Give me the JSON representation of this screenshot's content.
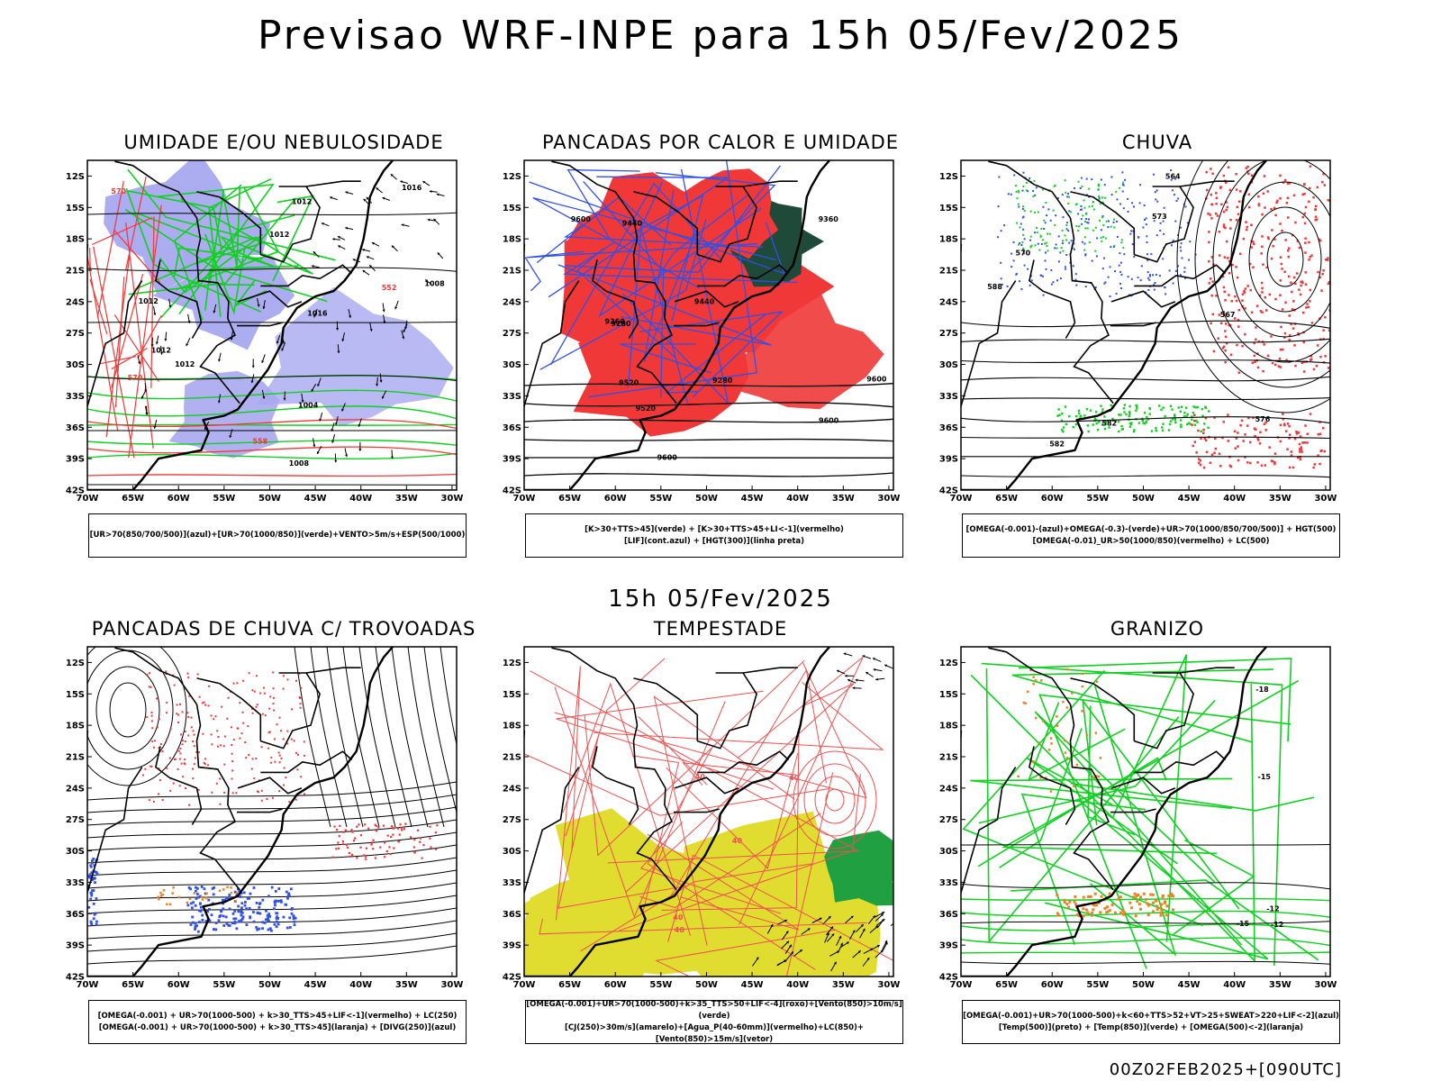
{
  "title": "Previsao WRF-INPE  para 15h 05/Fev/2025",
  "mid_time": "15h 05/Fev/2025",
  "run_label": "00Z02FEB2025+[090UTC]",
  "axes": {
    "lat_labels": [
      "12S",
      "15S",
      "18S",
      "21S",
      "24S",
      "27S",
      "30S",
      "33S",
      "36S",
      "39S",
      "42S"
    ],
    "lon_labels": [
      "70W",
      "65W",
      "60W",
      "55W",
      "50W",
      "45W",
      "40W",
      "35W",
      "30W"
    ]
  },
  "colors": {
    "blue": "#3050e8",
    "green": "#10d020",
    "red": "#f03838",
    "lavender": "#a8a8f0",
    "darkgreen": "#1f4a3a",
    "yellow": "#e0dc30",
    "orange": "#f08020",
    "black": "#000000"
  },
  "panels": [
    {
      "id": "umidade",
      "title": "UMIDADE E/OU NEBULOSIDADE",
      "legend": [
        "[UR>70(850/700/500)](azul)+[UR>70(1000/850)](verde)+VENTO>5m/s+ESP(500/1000)"
      ],
      "contour_labels": [
        "1008",
        "1012",
        "1012",
        "1016",
        "1012",
        "1016",
        "1004",
        "1008",
        "1012",
        "1012",
        "570",
        "558",
        "552",
        "570"
      ]
    },
    {
      "id": "pancadas-calor",
      "title": "PANCADAS POR CALOR E UMIDADE",
      "legend": [
        "[K>30+TTS>45](verde) + [K>30+TTS>45+LI<-1](vermelho)",
        "[LIF](cont.azul) + [HGT(300)](linha preta)"
      ],
      "contour_labels": [
        "9600",
        "9600",
        "9600",
        "9520",
        "9440",
        "9360",
        "9280",
        "9600",
        "9520",
        "9440",
        "9360",
        "9280"
      ]
    },
    {
      "id": "chuva",
      "title": "CHUVA",
      "legend": [
        "[OMEGA(-0.001)-(azul)+OMEGA(-0.3)-(verde)+UR>70(1000/850/700/500)] + HGT(500)",
        "[OMEGA(-0.01)_UR>50(1000/850)(vermelho) + LC(500)"
      ],
      "contour_labels": [
        "582",
        "588",
        "582",
        "576",
        "573",
        "570",
        "567",
        "564"
      ]
    },
    {
      "id": "pancadas-trovoadas",
      "title": "PANCADAS DE CHUVA C/ TROVOADAS",
      "legend": [
        "[OMEGA(-0.001) + UR>70(1000-500) + k>30_TTS>45+LIF<-1](vermelho) + LC(250)",
        "[OMEGA(-0.001) + UR>70(1000-500) + k>30_TTS>45](laranja) + [DIVG(250)](azul)"
      ],
      "contour_labels": []
    },
    {
      "id": "tempestade",
      "title": "TEMPESTADE",
      "legend": [
        "[OMEGA(-0.001)+UR>70(1000-500)+k>35_TTS>50+LIF<-4](roxo)+[Vento(850)>10m/s](verde)",
        "[CJ(250)>30m/s](amarelo)+[Agua_P(40-60mm)](vermelho)+LC(850)+[Vento(850)>15m/s](vetor)"
      ],
      "contour_labels": [
        "40",
        "40",
        "40",
        "40",
        "40"
      ]
    },
    {
      "id": "granizo",
      "title": "GRANIZO",
      "legend": [
        "[OMEGA(-0.001)+UR>70(1000-500)+k<60+TTS>52+VT>25+SWEAT>220+LIF<-2](azul)",
        "[Temp(500)](preto) + [Temp(850)](verde) + [OMEGA(500)<-2](laranja)"
      ],
      "contour_labels": [
        "-12",
        "-12",
        "-15",
        "-15",
        "-18"
      ]
    }
  ]
}
